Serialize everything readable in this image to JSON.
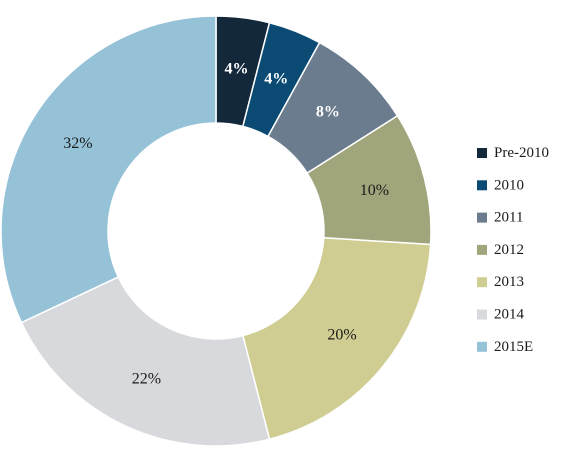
{
  "chart_data": {
    "type": "pie",
    "donut": true,
    "categories": [
      "Pre-2010",
      "2010",
      "2011",
      "2012",
      "2013",
      "2014",
      "2015E"
    ],
    "values": [
      4,
      4,
      8,
      10,
      20,
      22,
      32
    ],
    "value_labels": [
      "4%",
      "4%",
      "8%",
      "10%",
      "20%",
      "22%",
      "32%"
    ],
    "colors": [
      "#13283a",
      "#0b4a73",
      "#6b7c8f",
      "#a1a57c",
      "#d0cd93",
      "#d8d9dc",
      "#96c2d8"
    ],
    "label_colors": [
      "#ffffff",
      "#ffffff",
      "#ffffff",
      "#1a1a1a",
      "#1a1a1a",
      "#1a1a1a",
      "#1a1a1a"
    ],
    "label_bold": [
      true,
      true,
      true,
      false,
      false,
      false,
      false
    ],
    "legend_position": "right"
  }
}
